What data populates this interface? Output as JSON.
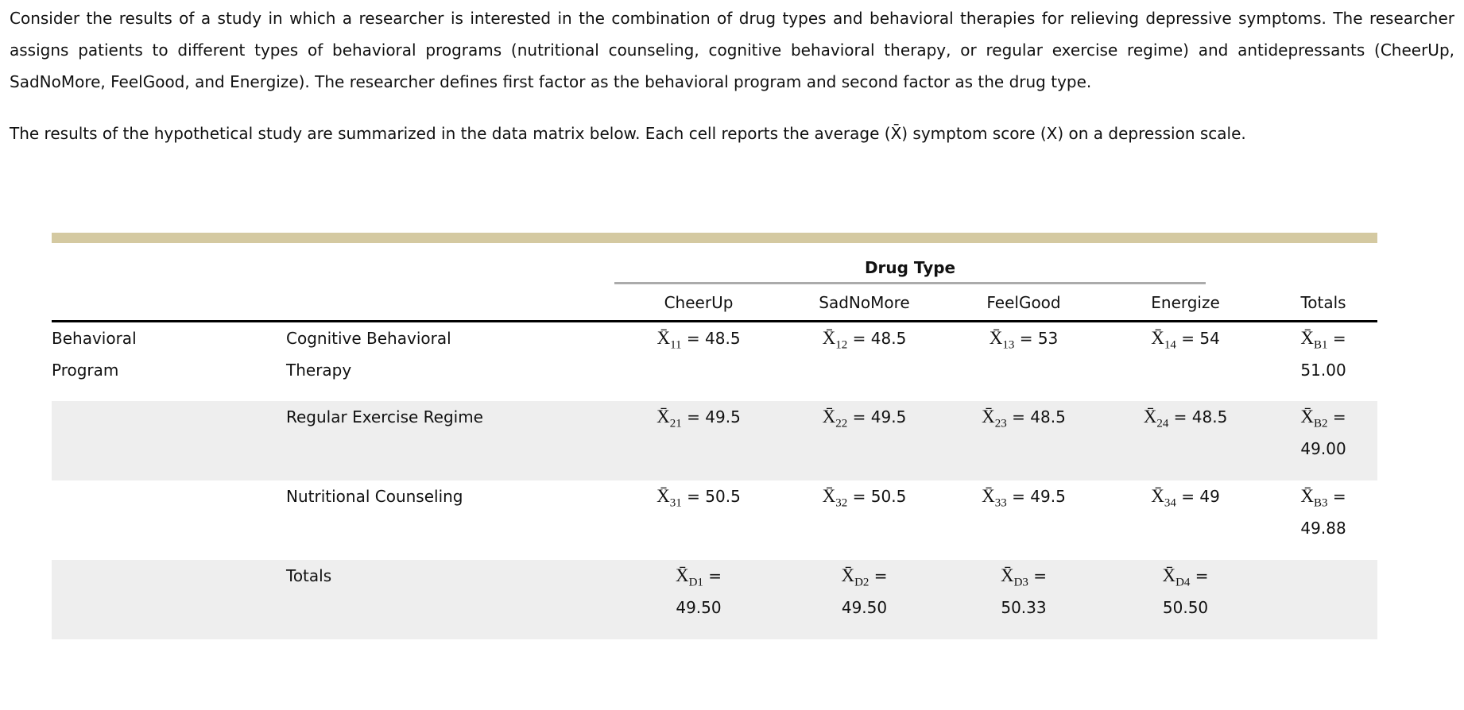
{
  "intro": {
    "para1": "Consider the results of a study in which a researcher is interested in the combination of drug types and behavioral therapies for relieving depressive symptoms. The researcher assigns patients to different types of behavioral programs (nutritional counseling, cognitive behavioral therapy, or regular exercise regime) and antidepressants (CheerUp, SadNoMore, FeelGood, and Energize). The researcher defines first factor as the behavioral program and second factor as the drug type.",
    "para2": "The results of the hypothetical study are summarized in the data matrix below. Each cell reports the average (X̄) symptom score (X) on a depression scale."
  },
  "table": {
    "group_header": "Drug Type",
    "row_group_header": "Behavioral Program",
    "columns": [
      "CheerUp",
      "SadNoMore",
      "FeelGood",
      "Energize",
      "Totals"
    ],
    "formula_base": "X̄",
    "equals": "=",
    "rows": [
      {
        "group": "Behavioral Program",
        "label": "Cognitive Behavioral Therapy",
        "shaded": false,
        "cells": [
          {
            "sub": "11",
            "value": "48.5"
          },
          {
            "sub": "12",
            "value": "48.5"
          },
          {
            "sub": "13",
            "value": "53"
          },
          {
            "sub": "14",
            "value": "54"
          }
        ],
        "total": {
          "sub": "B1",
          "value": "51.00",
          "wrap": true
        }
      },
      {
        "group": "",
        "label": "Regular Exercise Regime",
        "shaded": true,
        "cells": [
          {
            "sub": "21",
            "value": "49.5"
          },
          {
            "sub": "22",
            "value": "49.5"
          },
          {
            "sub": "23",
            "value": "48.5"
          },
          {
            "sub": "24",
            "value": "48.5"
          }
        ],
        "total": {
          "sub": "B2",
          "value": "49.00",
          "wrap": true
        }
      },
      {
        "group": "",
        "label": "Nutritional Counseling",
        "shaded": false,
        "cells": [
          {
            "sub": "31",
            "value": "50.5"
          },
          {
            "sub": "32",
            "value": "50.5"
          },
          {
            "sub": "33",
            "value": "49.5"
          },
          {
            "sub": "34",
            "value": "49"
          }
        ],
        "total": {
          "sub": "B3",
          "value": "49.88",
          "wrap": true
        }
      },
      {
        "group": "",
        "label": "Totals",
        "shaded": true,
        "cells": [
          {
            "sub": "D1",
            "value": "49.50",
            "wrap": true
          },
          {
            "sub": "D2",
            "value": "49.50",
            "wrap": true
          },
          {
            "sub": "D3",
            "value": "50.33",
            "wrap": true
          },
          {
            "sub": "D4",
            "value": "50.50",
            "wrap": true
          }
        ],
        "total": null
      }
    ]
  },
  "colors": {
    "accent_bar": "#d4c9a1",
    "shaded_row": "#eeeeee",
    "group_underline": "#ababab",
    "header_rule": "#000000"
  }
}
